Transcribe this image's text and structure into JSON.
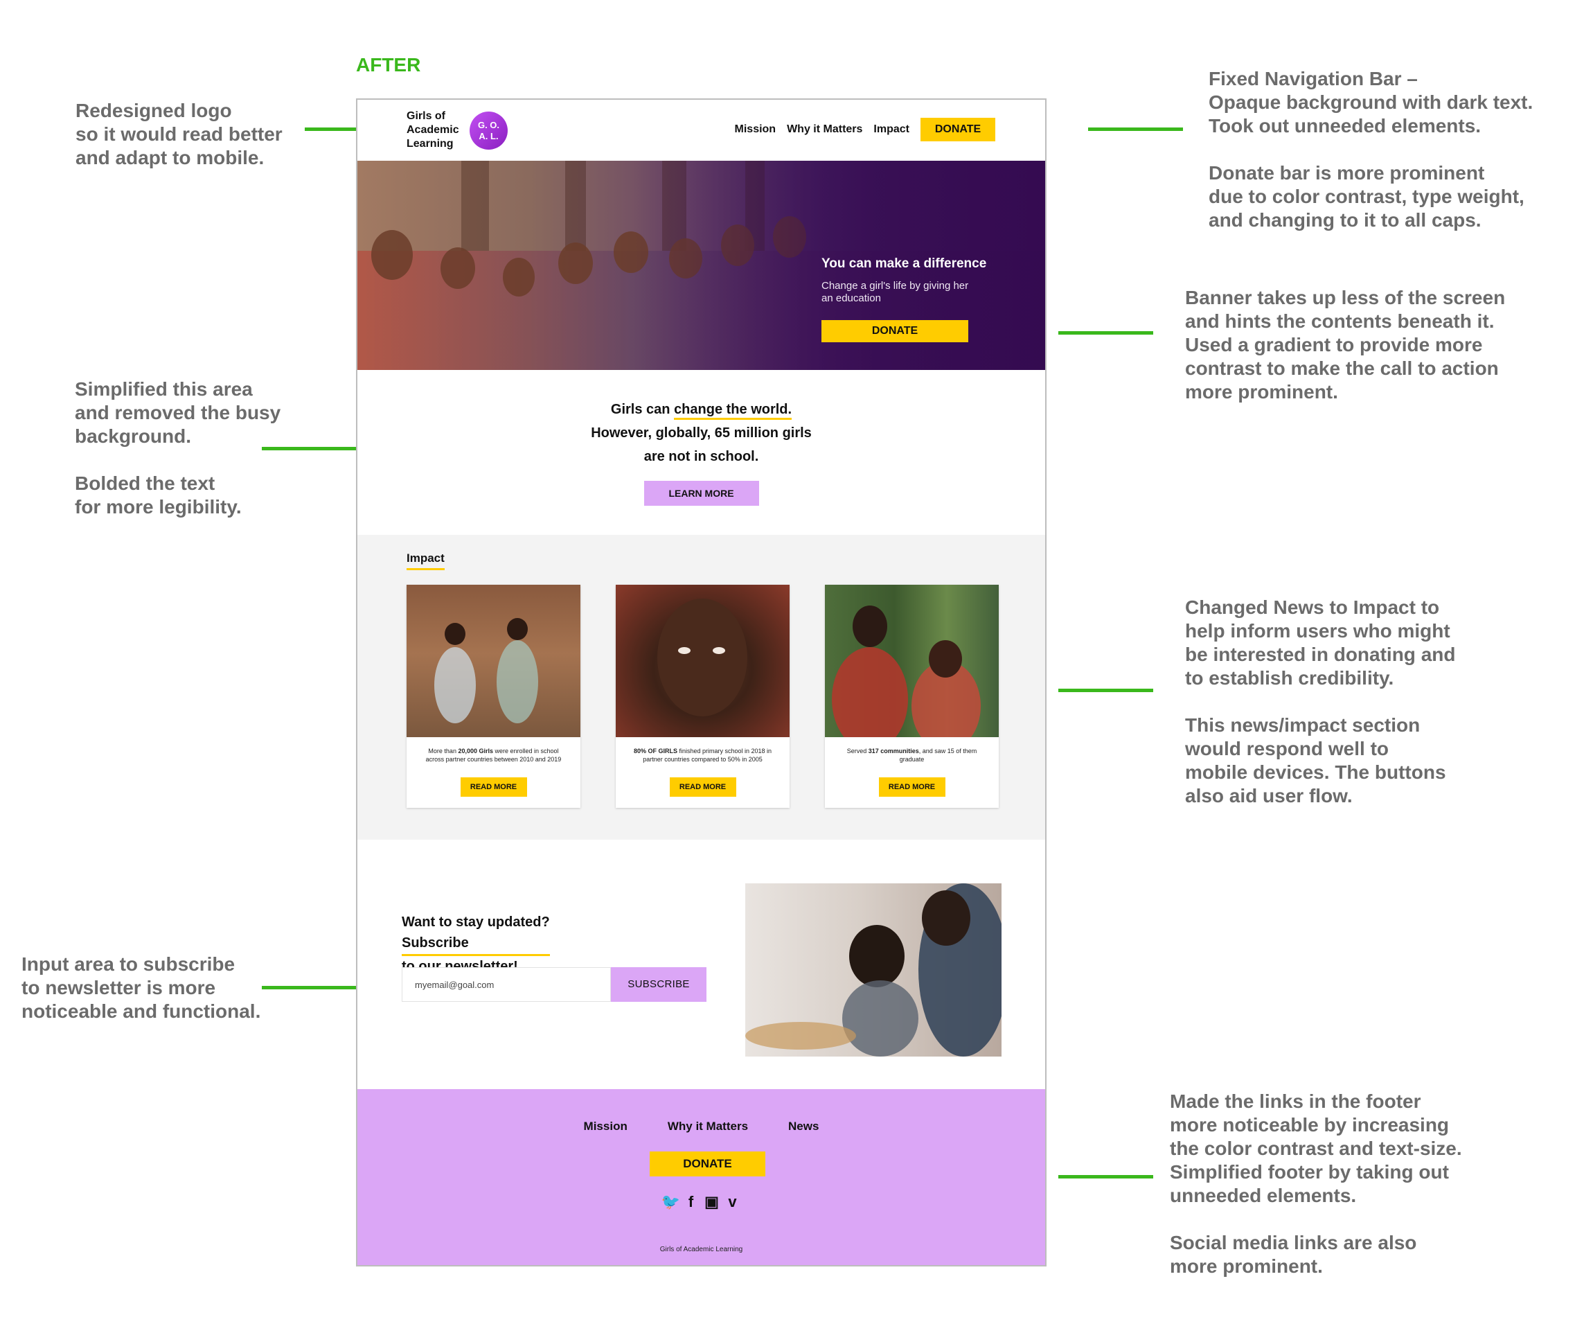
{
  "labels": {
    "after": "AFTER"
  },
  "annotations": {
    "logo": [
      "Redesigned logo",
      "so it would read better",
      "and adapt to mobile."
    ],
    "nav": [
      "Fixed Navigation Bar –",
      "Opaque background with dark text.",
      "Took out unneeded elements."
    ],
    "donate_bar": [
      "Donate bar is more prominent",
      "due to color contrast, type weight,",
      "and changing to it to all caps."
    ],
    "banner": [
      "Banner takes up less of the screen",
      "and hints the contents beneath it.",
      "Used a gradient to provide more",
      "contrast to make the call to action",
      "more prominent."
    ],
    "simplified": [
      "Simplified this area",
      "and removed the busy",
      "background."
    ],
    "bolded": [
      "Bolded the text",
      "for more legibility."
    ],
    "impact_change": [
      "Changed News to Impact to",
      "help inform users who might",
      "be interested in donating and",
      "to establish credibility."
    ],
    "impact_mobile": [
      "This news/impact section",
      "would respond well to",
      "mobile devices. The buttons",
      "also aid user flow."
    ],
    "input": [
      "Input area to subscribe",
      "to newsletter is more",
      "noticeable and functional."
    ],
    "footer_links": [
      "Made the links in the footer",
      "more noticeable by increasing",
      "the color contrast and text-size.",
      "Simplified footer by taking out",
      "unneeded elements."
    ],
    "social": [
      "Social media links are also",
      "more prominent."
    ]
  },
  "nav": {
    "logo_lines": [
      "Girls of",
      "Academic",
      "Learning"
    ],
    "badge_lines": [
      "G. O.",
      "A. L."
    ],
    "links": [
      "Mission",
      "Why it Matters",
      "Impact"
    ],
    "donate": "DONATE"
  },
  "hero": {
    "title": "You can make a difference",
    "subtitle": "Change a girl's life by giving her an education",
    "donate": "DONATE"
  },
  "statement": {
    "line1_pre": "Girls can ",
    "line1_em": "change the world.",
    "line2": "However, globally, 65 million girls",
    "line3": "are not in school.",
    "button": "LEARN MORE"
  },
  "impact": {
    "title": "Impact",
    "cards": [
      {
        "pre": "More than ",
        "bold": "20,000 Girls",
        "post": " were enrolled in school across partner countries between 2010 and 2019",
        "button": "READ MORE"
      },
      {
        "pre": "",
        "bold": "80% OF GIRLS",
        "post": " finished primary school in 2018 in partner countries compared to 50% in 2005",
        "button": "READ MORE"
      },
      {
        "pre": "Served ",
        "bold": "317 communities",
        "post": ", and saw 15 of them graduate",
        "button": "READ MORE"
      }
    ]
  },
  "newsletter": {
    "line1": "Want to stay updated?",
    "line2_em": "Subscribe",
    "line2_rest": " to our newsletter!",
    "email_value": "myemail@goal.com",
    "button": "SUBSCRIBE"
  },
  "footer": {
    "links": [
      "Mission",
      "Why it Matters",
      "News"
    ],
    "donate": "DONATE",
    "social_icons": [
      "twitter-icon",
      "facebook-icon",
      "instagram-icon",
      "vimeo-icon"
    ],
    "social_glyphs": [
      "🐦",
      "f",
      "▣",
      "v"
    ],
    "copyright": "Girls of Academic Learning"
  }
}
